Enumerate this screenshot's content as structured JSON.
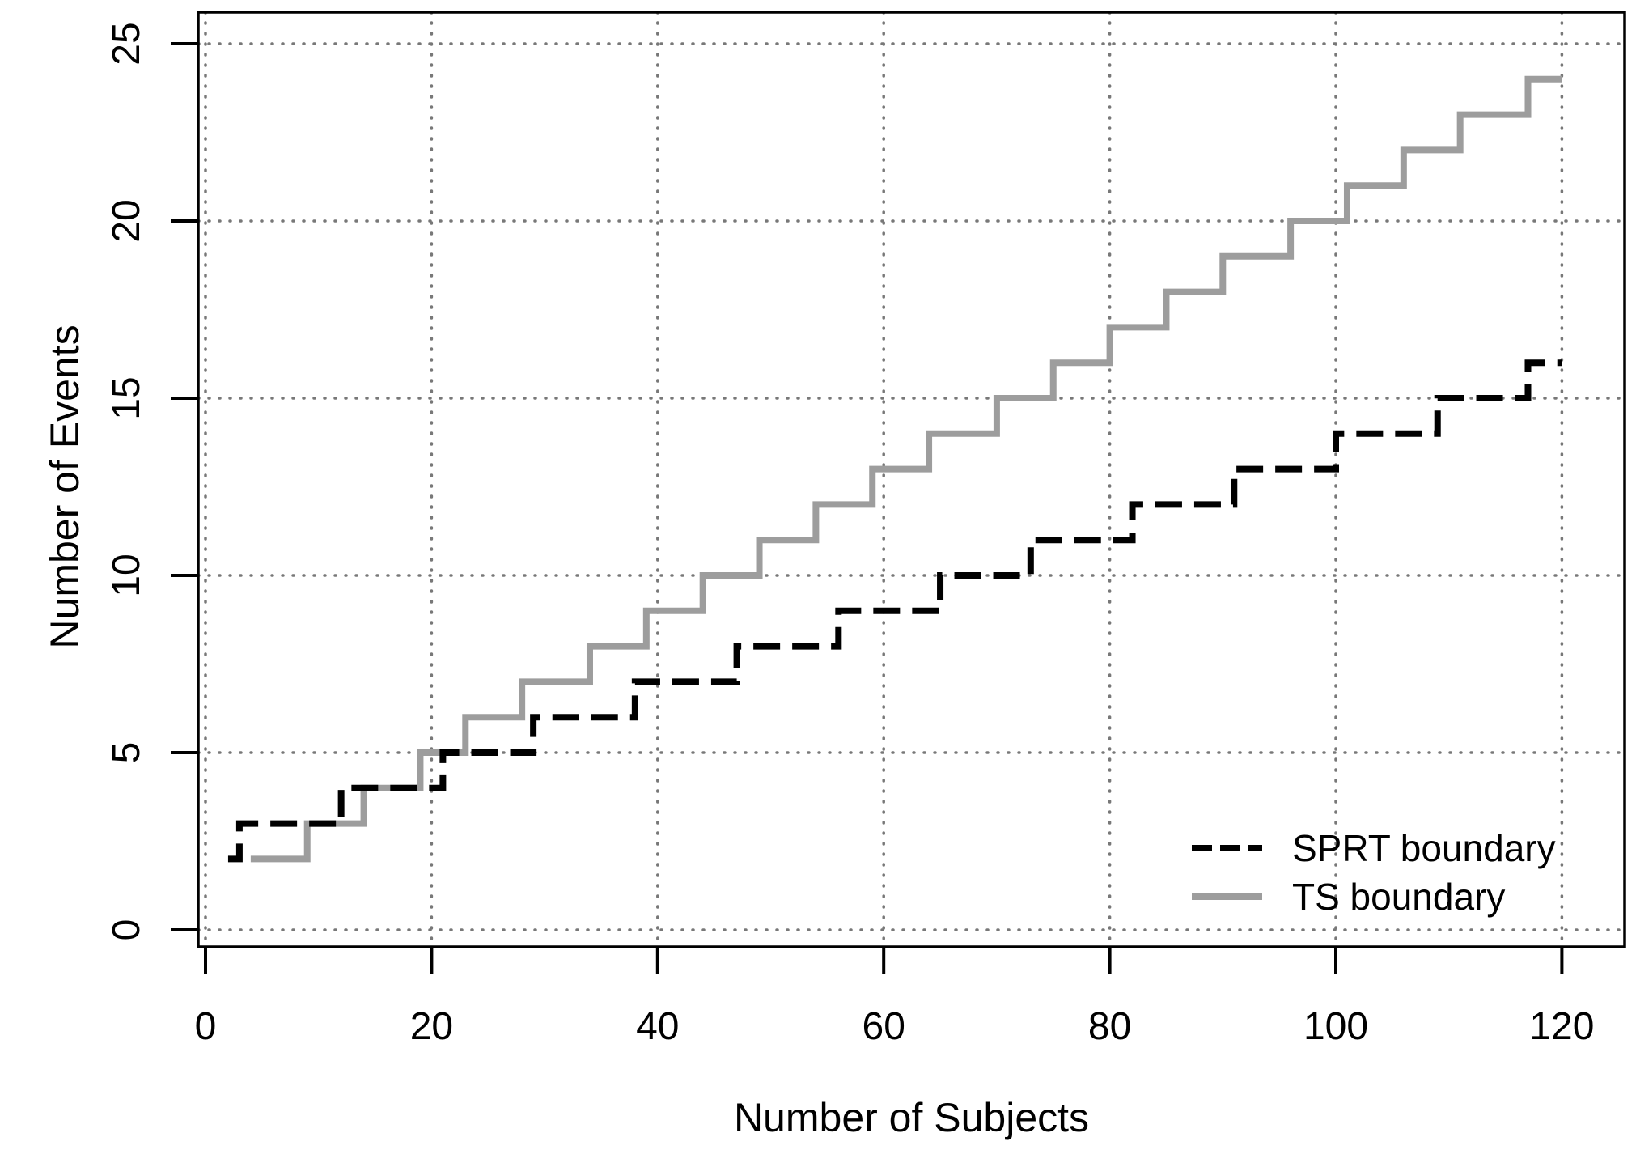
{
  "figure": {
    "background": "#ffffff",
    "border_color": "#000000"
  },
  "chart_data": {
    "type": "line",
    "line_style": "step-post",
    "title": "",
    "xlabel": "Number of Subjects",
    "ylabel": "Number of Events",
    "xticks": [
      0,
      20,
      40,
      60,
      80,
      100,
      120
    ],
    "yticks": [
      0,
      5,
      10,
      15,
      20,
      25
    ],
    "xlim": [
      -0.6,
      125.6
    ],
    "ylim": [
      -0.5,
      25.9
    ],
    "grid": {
      "visible": true,
      "style": "dotted",
      "color": "#787878"
    },
    "legend": {
      "position": "bottom-right"
    },
    "series": [
      {
        "name": "SPRT boundary",
        "color": "#000000",
        "style": "dashed",
        "line_width": 8,
        "step_points": [
          [
            2,
            2
          ],
          [
            3,
            3
          ],
          [
            12,
            4
          ],
          [
            21,
            5
          ],
          [
            29,
            6
          ],
          [
            38,
            7
          ],
          [
            47,
            8
          ],
          [
            56,
            9
          ],
          [
            65,
            10
          ],
          [
            73,
            11
          ],
          [
            82,
            12
          ],
          [
            91,
            13
          ],
          [
            100,
            14
          ],
          [
            109,
            15
          ],
          [
            117,
            16
          ]
        ],
        "x_end": 120
      },
      {
        "name": "TS boundary",
        "color": "#9d9d9d",
        "style": "solid",
        "line_width": 8,
        "step_points": [
          [
            4,
            2
          ],
          [
            9,
            3
          ],
          [
            14,
            4
          ],
          [
            19,
            5
          ],
          [
            23,
            6
          ],
          [
            28,
            7
          ],
          [
            34,
            8
          ],
          [
            39,
            9
          ],
          [
            44,
            10
          ],
          [
            49,
            11
          ],
          [
            54,
            12
          ],
          [
            59,
            13
          ],
          [
            64,
            14
          ],
          [
            70,
            15
          ],
          [
            75,
            16
          ],
          [
            80,
            17
          ],
          [
            85,
            18
          ],
          [
            90,
            19
          ],
          [
            96,
            20
          ],
          [
            101,
            21
          ],
          [
            106,
            22
          ],
          [
            111,
            23
          ],
          [
            117,
            24
          ]
        ],
        "x_end": 120
      }
    ]
  }
}
